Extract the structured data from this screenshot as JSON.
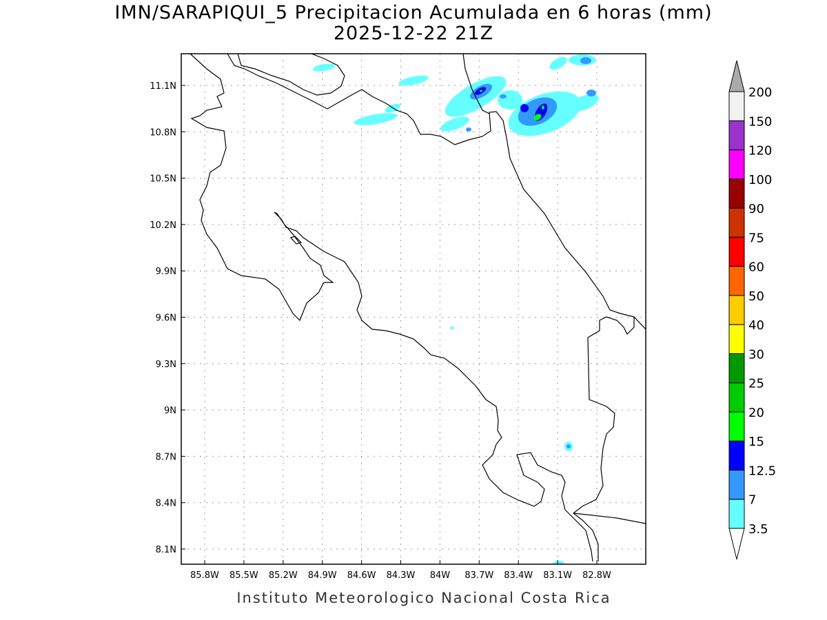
{
  "title": "IMN/SARAPIQUI_5 Precipitacion Acumulada en 6 horas (mm)",
  "subtitle": "2025-12-22 21Z",
  "footer": "Instituto Meteorologico Nacional Costa Rica",
  "map": {
    "lon_labels": [
      "85.8W",
      "85.5W",
      "85.2W",
      "84.9W",
      "84.6W",
      "84.3W",
      "84W",
      "83.7W",
      "83.4W",
      "83.1W",
      "82.8W"
    ],
    "lat_labels": [
      "11.1N",
      "10.8N",
      "10.5N",
      "10.2N",
      "9.9N",
      "9.6N",
      "9.3N",
      "9N",
      "8.7N",
      "8.4N",
      "8.1N"
    ]
  },
  "colorbar": {
    "labels": [
      "3.5",
      "7",
      "12.5",
      "15",
      "20",
      "25",
      "30",
      "40",
      "50",
      "60",
      "75",
      "90",
      "100",
      "120",
      "150",
      "200"
    ],
    "colors": [
      "#66ffff",
      "#3399ff",
      "#0000ff",
      "#00ff00",
      "#00cc00",
      "#009900",
      "#ffff00",
      "#ffcc00",
      "#ff6600",
      "#ff0000",
      "#cc3300",
      "#990000",
      "#ff00ff",
      "#9933cc",
      "#f2f2f2"
    ],
    "over_color": "#aaaaaa"
  }
}
